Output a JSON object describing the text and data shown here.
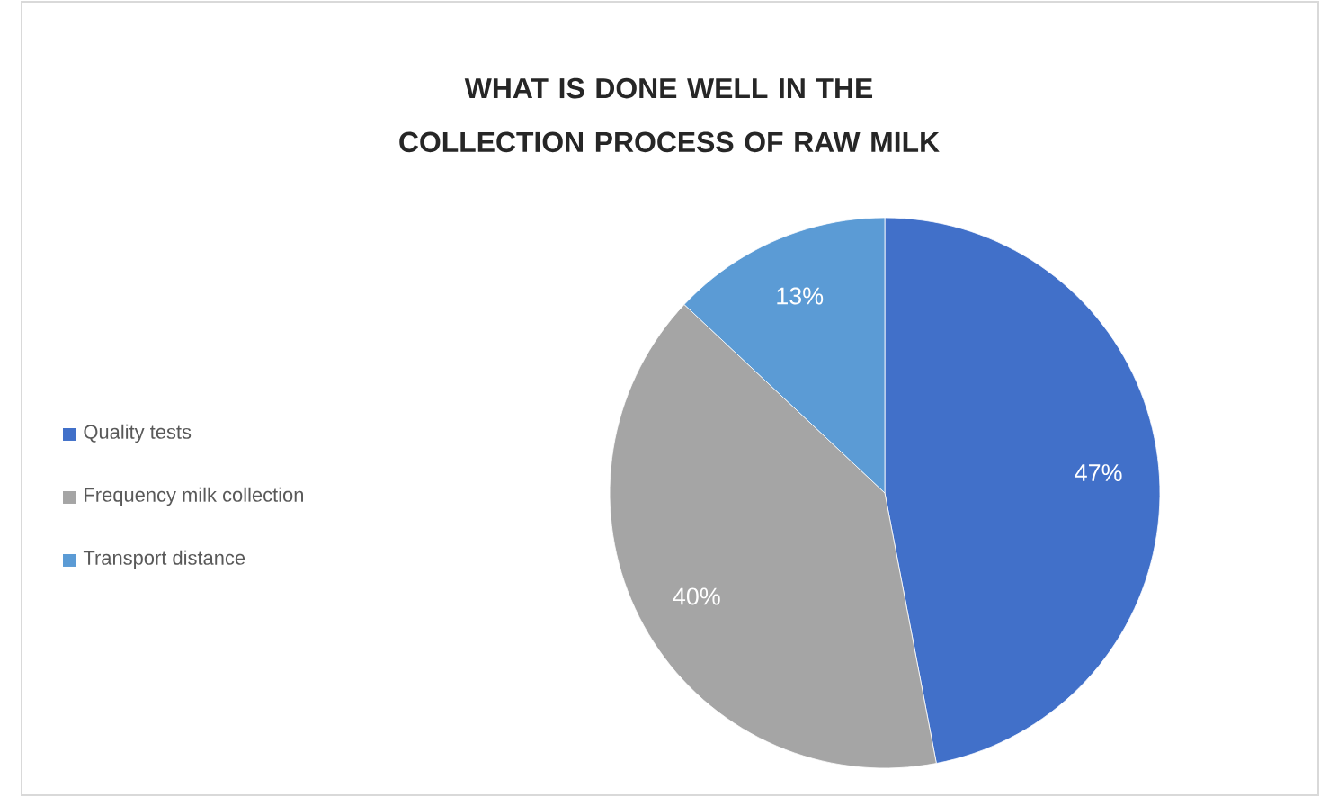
{
  "chart_data": {
    "type": "pie",
    "title": "WHAT IS DONE WELL IN THE COLLECTION PROCESS OF RAW MILK",
    "categories": [
      "Quality tests",
      "Frequency milk collection",
      "Transport distance"
    ],
    "values": [
      47,
      40,
      13
    ],
    "colors": [
      "#4170c9",
      "#a5a5a5",
      "#5b9bd5"
    ],
    "value_labels": [
      "47%",
      "40%",
      "13%"
    ],
    "legend": "left"
  }
}
